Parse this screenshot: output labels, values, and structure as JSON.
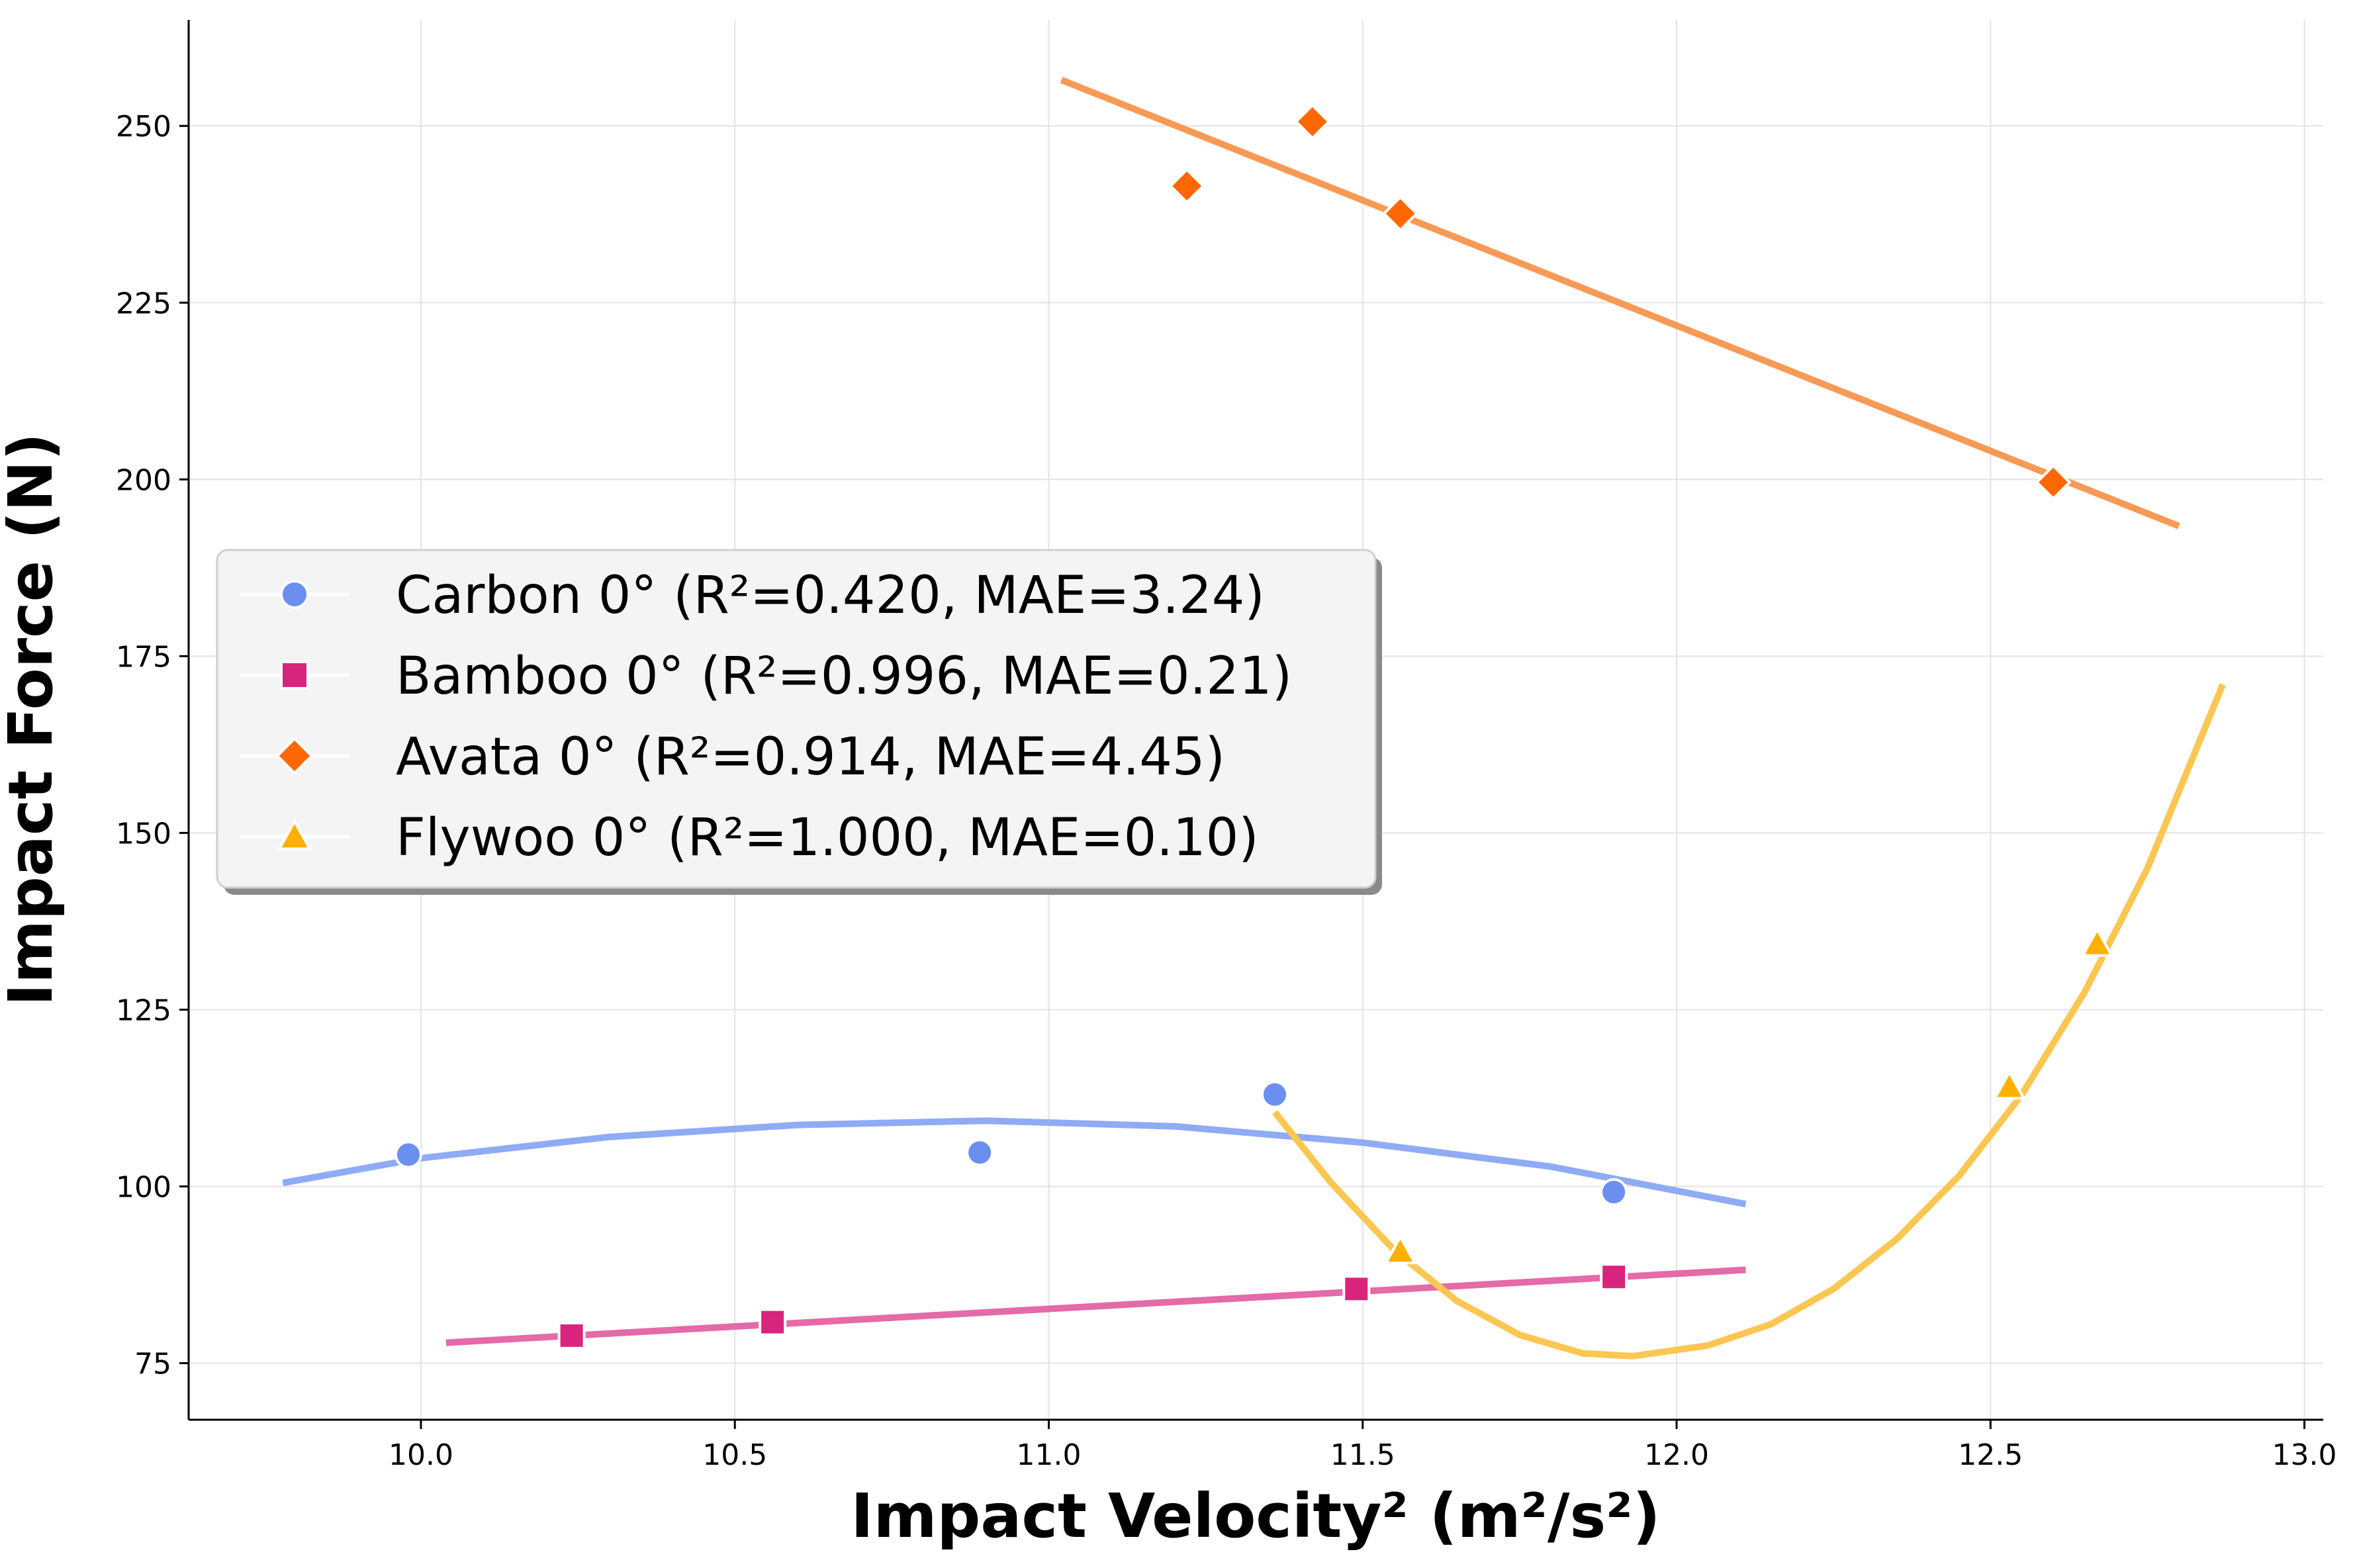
{
  "chart_data": {
    "type": "scatter",
    "title": "",
    "xlabel": "Impact Velocity² (m²/s²)",
    "ylabel": "Impact Force (N)",
    "xlim": [
      9.63,
      13.03
    ],
    "ylim": [
      67,
      265
    ],
    "xticks": [
      10.0,
      10.5,
      11.0,
      11.5,
      12.0,
      12.5,
      13.0
    ],
    "xtick_labels": [
      "10.0",
      "10.5",
      "11.0",
      "11.5",
      "12.0",
      "12.5",
      "13.0"
    ],
    "yticks": [
      75,
      100,
      125,
      150,
      175,
      200,
      225,
      250
    ],
    "ytick_labels": [
      "75",
      "100",
      "125",
      "150",
      "175",
      "200",
      "225",
      "250"
    ],
    "grid": true,
    "legend_position": "center-left",
    "series": [
      {
        "name": "Carbon 0° (R²=0.420, MAE=3.24)",
        "color": "#6b8ff0",
        "fit_color": "#8fabf5",
        "marker": "circle",
        "points": [
          [
            9.98,
            104.5
          ],
          [
            10.89,
            104.8
          ],
          [
            11.36,
            113.0
          ],
          [
            11.9,
            99.2
          ]
        ],
        "fit_curve": [
          [
            9.78,
            100.5
          ],
          [
            10.0,
            104.0
          ],
          [
            10.3,
            107.0
          ],
          [
            10.6,
            108.7
          ],
          [
            10.9,
            109.3
          ],
          [
            11.2,
            108.5
          ],
          [
            11.5,
            106.2
          ],
          [
            11.8,
            102.8
          ],
          [
            12.11,
            97.5
          ]
        ]
      },
      {
        "name": "Bamboo 0° (R²=0.996, MAE=0.21)",
        "color": "#d9247e",
        "fit_color": "#e46aa8",
        "marker": "square",
        "points": [
          [
            10.24,
            78.9
          ],
          [
            10.56,
            80.8
          ],
          [
            11.49,
            85.5
          ],
          [
            11.9,
            87.2
          ]
        ],
        "fit_curve": [
          [
            10.04,
            77.9
          ],
          [
            12.11,
            88.2
          ]
        ]
      },
      {
        "name": "Avata 0° (R²=0.914, MAE=4.45)",
        "color": "#ff6700",
        "fit_color": "#f79a55",
        "marker": "diamond",
        "points": [
          [
            11.22,
            241.5
          ],
          [
            11.42,
            250.6
          ],
          [
            11.56,
            237.6
          ],
          [
            12.6,
            199.6
          ]
        ],
        "fit_curve": [
          [
            11.02,
            256.5
          ],
          [
            12.8,
            193.4
          ]
        ]
      },
      {
        "name": "Flywoo 0° (R²=1.000, MAE=0.10)",
        "color": "#ffb000",
        "fit_color": "#fcc653",
        "marker": "triangle",
        "points": [
          [
            11.56,
            90.8
          ],
          [
            12.53,
            114.1
          ],
          [
            12.67,
            134.3
          ]
        ],
        "fit_curve": [
          [
            11.36,
            110.5
          ],
          [
            11.45,
            100.5
          ],
          [
            11.55,
            91.0
          ],
          [
            11.65,
            83.8
          ],
          [
            11.75,
            79.0
          ],
          [
            11.85,
            76.4
          ],
          [
            11.93,
            76.0
          ],
          [
            12.05,
            77.5
          ],
          [
            12.15,
            80.5
          ],
          [
            12.25,
            85.5
          ],
          [
            12.35,
            92.5
          ],
          [
            12.45,
            101.5
          ],
          [
            12.55,
            113.0
          ],
          [
            12.65,
            127.5
          ],
          [
            12.75,
            145.0
          ],
          [
            12.87,
            171.0
          ]
        ]
      }
    ]
  }
}
